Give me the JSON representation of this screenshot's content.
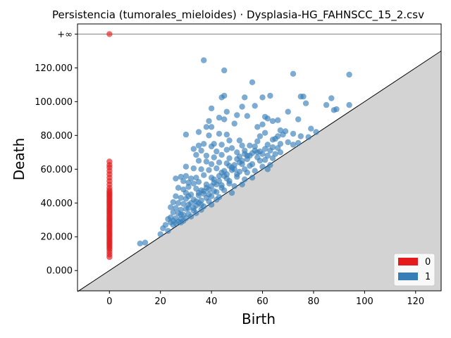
{
  "chart_data": {
    "type": "scatter",
    "title": "Persistencia (tumorales_mieloides) · Dysplasia-HG_FAHNSCC_15_2.csv",
    "xlabel": "Birth",
    "ylabel": "Death",
    "xlim": [
      -12.5,
      130
    ],
    "ylim": [
      -12000,
      146000
    ],
    "x_ticks": [
      0,
      20,
      40,
      60,
      80,
      100,
      120
    ],
    "x_tick_labels": [
      "0",
      "20",
      "40",
      "60",
      "80",
      "100",
      "120"
    ],
    "y_ticks": [
      0,
      20000,
      40000,
      60000,
      80000,
      100000,
      120000
    ],
    "y_tick_labels": [
      "0.000",
      "20.000",
      "40.000",
      "60.000",
      "80.000",
      "100.000",
      "120.000"
    ],
    "infinity_label": "+∞",
    "infinity_value": 140000,
    "diagonal": true,
    "grid": false,
    "legend_position": "bottom-right",
    "series": [
      {
        "name": "0",
        "color": "#e41a1c",
        "infinite_points": [
          [
            0,
            140000
          ]
        ],
        "points": [
          [
            0,
            8000
          ],
          [
            0,
            9500
          ],
          [
            0,
            11000
          ],
          [
            0,
            12500
          ],
          [
            0,
            13500
          ],
          [
            0,
            14500
          ],
          [
            0,
            15500
          ],
          [
            0,
            16500
          ],
          [
            0,
            17500
          ],
          [
            0,
            18500
          ],
          [
            0,
            19500
          ],
          [
            0,
            20500
          ],
          [
            0,
            21500
          ],
          [
            0,
            22500
          ],
          [
            0,
            23500
          ],
          [
            0,
            24500
          ],
          [
            0,
            25500
          ],
          [
            0,
            26500
          ],
          [
            0,
            27500
          ],
          [
            0,
            28500
          ],
          [
            0,
            29500
          ],
          [
            0,
            30500
          ],
          [
            0,
            31500
          ],
          [
            0,
            32500
          ],
          [
            0,
            33500
          ],
          [
            0,
            34500
          ],
          [
            0,
            35500
          ],
          [
            0,
            36500
          ],
          [
            0,
            37500
          ],
          [
            0,
            38500
          ],
          [
            0,
            39500
          ],
          [
            0,
            40500
          ],
          [
            0,
            41500
          ],
          [
            0,
            42500
          ],
          [
            0,
            43500
          ],
          [
            0,
            44500
          ],
          [
            0,
            45500
          ],
          [
            0,
            46500
          ],
          [
            0,
            47500
          ],
          [
            0,
            49000
          ],
          [
            0,
            51000
          ],
          [
            0,
            53000
          ],
          [
            0,
            55000
          ],
          [
            0,
            57000
          ],
          [
            0,
            59000
          ],
          [
            0,
            61000
          ],
          [
            0,
            62500
          ],
          [
            0,
            64500
          ]
        ]
      },
      {
        "name": "1",
        "color": "#377eb8",
        "points": [
          [
            37,
            124500
          ],
          [
            45,
            118500
          ],
          [
            72,
            116500
          ],
          [
            94,
            116000
          ],
          [
            56,
            111500
          ],
          [
            60,
            102500
          ],
          [
            63,
            103500
          ],
          [
            76,
            103000
          ],
          [
            53,
            102500
          ],
          [
            44,
            102500
          ],
          [
            45,
            103500
          ],
          [
            75,
            103000
          ],
          [
            87,
            102000
          ],
          [
            77,
            99000
          ],
          [
            85,
            98000
          ],
          [
            94,
            98000
          ],
          [
            57,
            97500
          ],
          [
            52,
            97000
          ],
          [
            40,
            96000
          ],
          [
            88,
            95000
          ],
          [
            89,
            95500
          ],
          [
            70,
            94000
          ],
          [
            46,
            94000
          ],
          [
            50,
            92000
          ],
          [
            54,
            91500
          ],
          [
            61,
            91000
          ],
          [
            43,
            90500
          ],
          [
            45,
            89500
          ],
          [
            39,
            88500
          ],
          [
            66,
            89000
          ],
          [
            62,
            90000
          ],
          [
            64,
            88500
          ],
          [
            49,
            87000
          ],
          [
            60,
            86500
          ],
          [
            74,
            89500
          ],
          [
            38,
            85000
          ],
          [
            40,
            85000
          ],
          [
            58,
            85000
          ],
          [
            61,
            81500
          ],
          [
            67,
            83000
          ],
          [
            69,
            82500
          ],
          [
            79,
            84000
          ],
          [
            68,
            80500
          ],
          [
            72,
            81000
          ],
          [
            35,
            82000
          ],
          [
            30,
            80500
          ],
          [
            39,
            80000
          ],
          [
            43,
            81000
          ],
          [
            46,
            80500
          ],
          [
            59,
            79500
          ],
          [
            64,
            77500
          ],
          [
            65,
            78000
          ],
          [
            66,
            79500
          ],
          [
            75,
            79500
          ],
          [
            78,
            79000
          ],
          [
            81,
            82000
          ],
          [
            58,
            76500
          ],
          [
            47,
            77000
          ],
          [
            51,
            77000
          ],
          [
            55,
            74000
          ],
          [
            62,
            74500
          ],
          [
            70,
            76000
          ],
          [
            74,
            75500
          ],
          [
            35,
            74000
          ],
          [
            37,
            75000
          ],
          [
            40,
            73500
          ],
          [
            41,
            75000
          ],
          [
            44,
            74500
          ],
          [
            48,
            72500
          ],
          [
            52,
            74000
          ],
          [
            57,
            73500
          ],
          [
            66,
            72500
          ],
          [
            72,
            74500
          ],
          [
            33,
            72000
          ],
          [
            36,
            71000
          ],
          [
            42,
            70500
          ],
          [
            46,
            71500
          ],
          [
            50,
            70000
          ],
          [
            53,
            71000
          ],
          [
            56,
            69500
          ],
          [
            59,
            70500
          ],
          [
            63,
            71000
          ],
          [
            67,
            70000
          ],
          [
            34,
            68500
          ],
          [
            38,
            68000
          ],
          [
            41,
            67000
          ],
          [
            44,
            68500
          ],
          [
            47,
            66500
          ],
          [
            51,
            67500
          ],
          [
            54,
            66000
          ],
          [
            58,
            67000
          ],
          [
            61,
            65500
          ],
          [
            64,
            66500
          ],
          [
            35,
            65000
          ],
          [
            38,
            64500
          ],
          [
            40,
            63000
          ],
          [
            43,
            64000
          ],
          [
            46,
            63500
          ],
          [
            49,
            62500
          ],
          [
            52,
            63000
          ],
          [
            55,
            62000
          ],
          [
            60,
            61500
          ],
          [
            63,
            62500
          ],
          [
            30,
            61500
          ],
          [
            33,
            60500
          ],
          [
            36,
            60000
          ],
          [
            39,
            59500
          ],
          [
            42,
            60500
          ],
          [
            45,
            59000
          ],
          [
            48,
            59500
          ],
          [
            51,
            58500
          ],
          [
            54,
            58000
          ],
          [
            57,
            59000
          ],
          [
            62,
            60000
          ],
          [
            28,
            55500
          ],
          [
            30,
            56000
          ],
          [
            32,
            54500
          ],
          [
            34,
            55000
          ],
          [
            37,
            56500
          ],
          [
            40,
            55000
          ],
          [
            43,
            56000
          ],
          [
            46,
            54500
          ],
          [
            50,
            55500
          ],
          [
            53,
            54000
          ],
          [
            56,
            55000
          ],
          [
            26,
            54500
          ],
          [
            29,
            53000
          ],
          [
            31,
            52000
          ],
          [
            33,
            51500
          ],
          [
            35,
            52500
          ],
          [
            38,
            51000
          ],
          [
            41,
            52000
          ],
          [
            44,
            50500
          ],
          [
            47,
            51500
          ],
          [
            49,
            50000
          ],
          [
            52,
            51000
          ],
          [
            27,
            49000
          ],
          [
            29,
            48000
          ],
          [
            31,
            49500
          ],
          [
            34,
            48500
          ],
          [
            36,
            47500
          ],
          [
            39,
            48000
          ],
          [
            42,
            46500
          ],
          [
            45,
            47500
          ],
          [
            48,
            46000
          ],
          [
            30,
            46000
          ],
          [
            32,
            45000
          ],
          [
            35,
            44500
          ],
          [
            37,
            45500
          ],
          [
            40,
            44000
          ],
          [
            43,
            43500
          ],
          [
            26,
            44000
          ],
          [
            28,
            43000
          ],
          [
            30,
            42500
          ],
          [
            33,
            42000
          ],
          [
            36,
            41500
          ],
          [
            39,
            41000
          ],
          [
            42,
            42000
          ],
          [
            25,
            40500
          ],
          [
            27,
            40000
          ],
          [
            29,
            39500
          ],
          [
            31,
            39000
          ],
          [
            34,
            38500
          ],
          [
            37,
            38000
          ],
          [
            40,
            39000
          ],
          [
            24,
            37500
          ],
          [
            26,
            37000
          ],
          [
            28,
            36000
          ],
          [
            30,
            36500
          ],
          [
            33,
            35500
          ],
          [
            36,
            36000
          ],
          [
            25,
            34500
          ],
          [
            27,
            34000
          ],
          [
            29,
            33000
          ],
          [
            31,
            33500
          ],
          [
            34,
            34000
          ],
          [
            24,
            31500
          ],
          [
            26,
            31000
          ],
          [
            28,
            30500
          ],
          [
            30,
            31000
          ],
          [
            32,
            32000
          ],
          [
            23,
            30500
          ],
          [
            25,
            29500
          ],
          [
            27,
            29000
          ],
          [
            29,
            29500
          ],
          [
            24,
            28500
          ],
          [
            26,
            28000
          ],
          [
            28,
            28500
          ],
          [
            22,
            27000
          ],
          [
            25,
            27000
          ],
          [
            21,
            25000
          ],
          [
            23,
            23500
          ],
          [
            20,
            21500
          ],
          [
            12,
            16000
          ],
          [
            14,
            16500
          ],
          [
            31,
            44000
          ],
          [
            35,
            40000
          ],
          [
            38,
            43000
          ],
          [
            41,
            47000
          ],
          [
            44,
            49000
          ],
          [
            47,
            53000
          ],
          [
            50,
            57000
          ],
          [
            53,
            60000
          ],
          [
            56,
            63000
          ],
          [
            59,
            65000
          ],
          [
            62,
            68000
          ],
          [
            65,
            69000
          ],
          [
            33,
            37000
          ],
          [
            36,
            39000
          ],
          [
            39,
            45000
          ],
          [
            42,
            51000
          ],
          [
            45,
            56000
          ],
          [
            48,
            61000
          ],
          [
            51,
            64000
          ],
          [
            54,
            68000
          ],
          [
            57,
            71000
          ],
          [
            60,
            69000
          ],
          [
            32,
            40000
          ],
          [
            35,
            46000
          ],
          [
            38,
            49000
          ],
          [
            41,
            54000
          ],
          [
            44,
            58000
          ],
          [
            47,
            62000
          ],
          [
            50,
            66000
          ],
          [
            53,
            69000
          ],
          [
            28,
            33000
          ],
          [
            31,
            37000
          ],
          [
            34,
            41000
          ],
          [
            37,
            47000
          ],
          [
            40,
            50000
          ],
          [
            43,
            53000
          ],
          [
            46,
            57000
          ],
          [
            49,
            60000
          ],
          [
            52,
            65000
          ],
          [
            55,
            68000
          ],
          [
            58,
            70000
          ],
          [
            61,
            72000
          ],
          [
            64,
            73000
          ],
          [
            67,
            75000
          ]
        ]
      }
    ]
  }
}
